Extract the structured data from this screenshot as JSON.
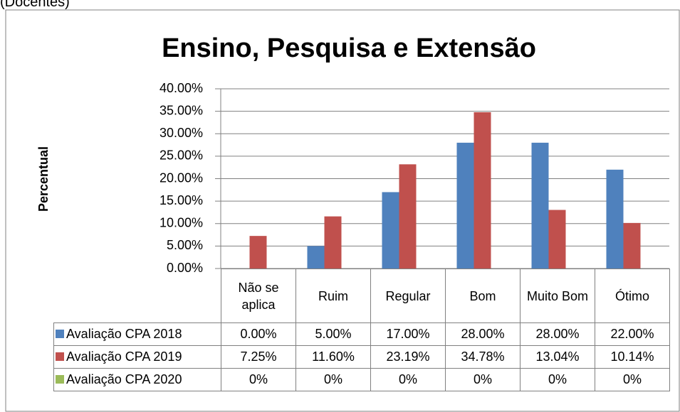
{
  "header": "(Docentes)",
  "chart_data": {
    "type": "bar",
    "title": "Ensino, Pesquisa e Extensão",
    "y_label": "Percentual",
    "categories": [
      "Não se aplica",
      "Ruim",
      "Regular",
      "Bom",
      "Muito Bom",
      "Ótimo"
    ],
    "series": [
      {
        "name": "Avaliação CPA 2018",
        "color": "#4f81bd",
        "values": [
          0,
          5,
          17,
          28,
          28,
          22
        ],
        "value_labels": [
          "0.00%",
          "5.00%",
          "17.00%",
          "28.00%",
          "28.00%",
          "22.00%"
        ]
      },
      {
        "name": "Avaliação CPA 2019",
        "color": "#c0504d",
        "values": [
          7.25,
          11.6,
          23.19,
          34.78,
          13.04,
          10.14
        ],
        "value_labels": [
          "7.25%",
          "11.60%",
          "23.19%",
          "34.78%",
          "13.04%",
          "10.14%"
        ]
      },
      {
        "name": "Avaliação CPA 2020",
        "color": "#9bbb59",
        "values": [
          0,
          0,
          0,
          0,
          0,
          0
        ],
        "value_labels": [
          "0%",
          "0%",
          "0%",
          "0%",
          "0%",
          "0%"
        ]
      }
    ],
    "ylim": [
      0,
      40
    ],
    "yticks": [
      {
        "value": 0,
        "label": "0.00%"
      },
      {
        "value": 5,
        "label": "5.00%"
      },
      {
        "value": 10,
        "label": "10.00%"
      },
      {
        "value": 15,
        "label": "15.00%"
      },
      {
        "value": 20,
        "label": "20.00%"
      },
      {
        "value": 25,
        "label": "25.00%"
      },
      {
        "value": 30,
        "label": "30.00%"
      },
      {
        "value": 35,
        "label": "35.00%"
      },
      {
        "value": 40,
        "label": "40.00%"
      }
    ],
    "grid": true
  }
}
